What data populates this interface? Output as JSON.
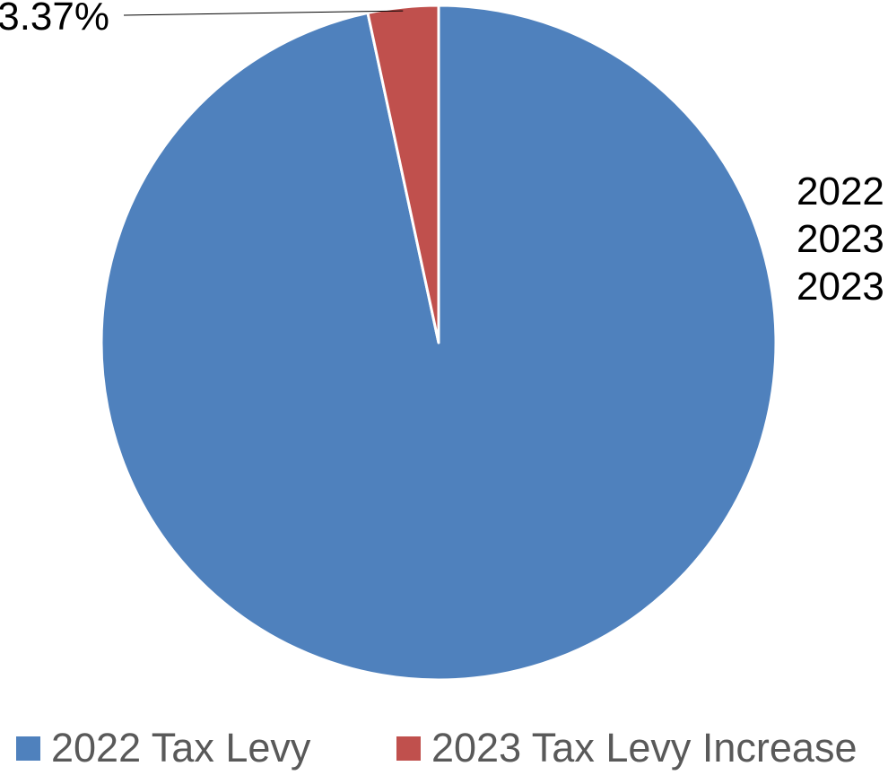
{
  "chart_data": {
    "type": "pie",
    "title": "",
    "slices": [
      {
        "label": "2022 Tax Levy",
        "value": 96.63,
        "color": "#4F81BD"
      },
      {
        "label": "2023 Tax Levy Increase",
        "value": 3.37,
        "color": "#C0504D"
      }
    ],
    "data_labels": [
      "3.37%"
    ],
    "side_text_lines": [
      "2022",
      "2023",
      "2023"
    ],
    "legend": {
      "placement": "bottom",
      "entries": [
        "2022 Tax Levy",
        "2023 Tax Levy Increase"
      ]
    }
  }
}
